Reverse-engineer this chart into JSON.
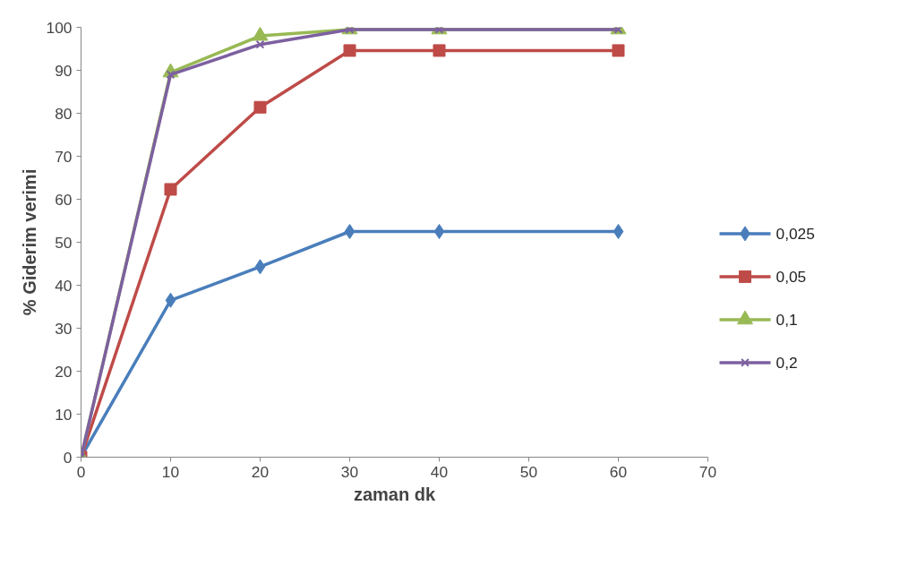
{
  "chart_data": {
    "type": "line",
    "xlabel": "zaman dk",
    "ylabel": "% Giderim verimi",
    "x": [
      0,
      10,
      20,
      30,
      40,
      60
    ],
    "series": [
      {
        "name": "0,025",
        "color": "#4a7ebb",
        "marker": "diamond",
        "values": [
          0,
          36.5,
          44.3,
          52.5,
          52.5,
          52.5
        ]
      },
      {
        "name": "0,05",
        "color": "#be4b48",
        "marker": "square",
        "values": [
          0,
          62.3,
          81.4,
          94.6,
          94.6,
          94.6
        ]
      },
      {
        "name": "0,1",
        "color": "#98b954",
        "marker": "triangle",
        "values": [
          0,
          89.5,
          98,
          99.5,
          99.5,
          99.5
        ]
      },
      {
        "name": "0,2",
        "color": "#7d60a0",
        "marker": "cross",
        "values": [
          0,
          89,
          96,
          99.5,
          99.5,
          99.5
        ]
      }
    ],
    "xlim": [
      0,
      70
    ],
    "xticks": [
      0,
      10,
      20,
      30,
      40,
      50,
      60,
      70
    ],
    "ylim": [
      0,
      100
    ],
    "yticks": [
      0,
      10,
      20,
      30,
      40,
      50,
      60,
      70,
      80,
      90,
      100
    ],
    "grid": false,
    "legend": "right",
    "line_style": "solid"
  }
}
